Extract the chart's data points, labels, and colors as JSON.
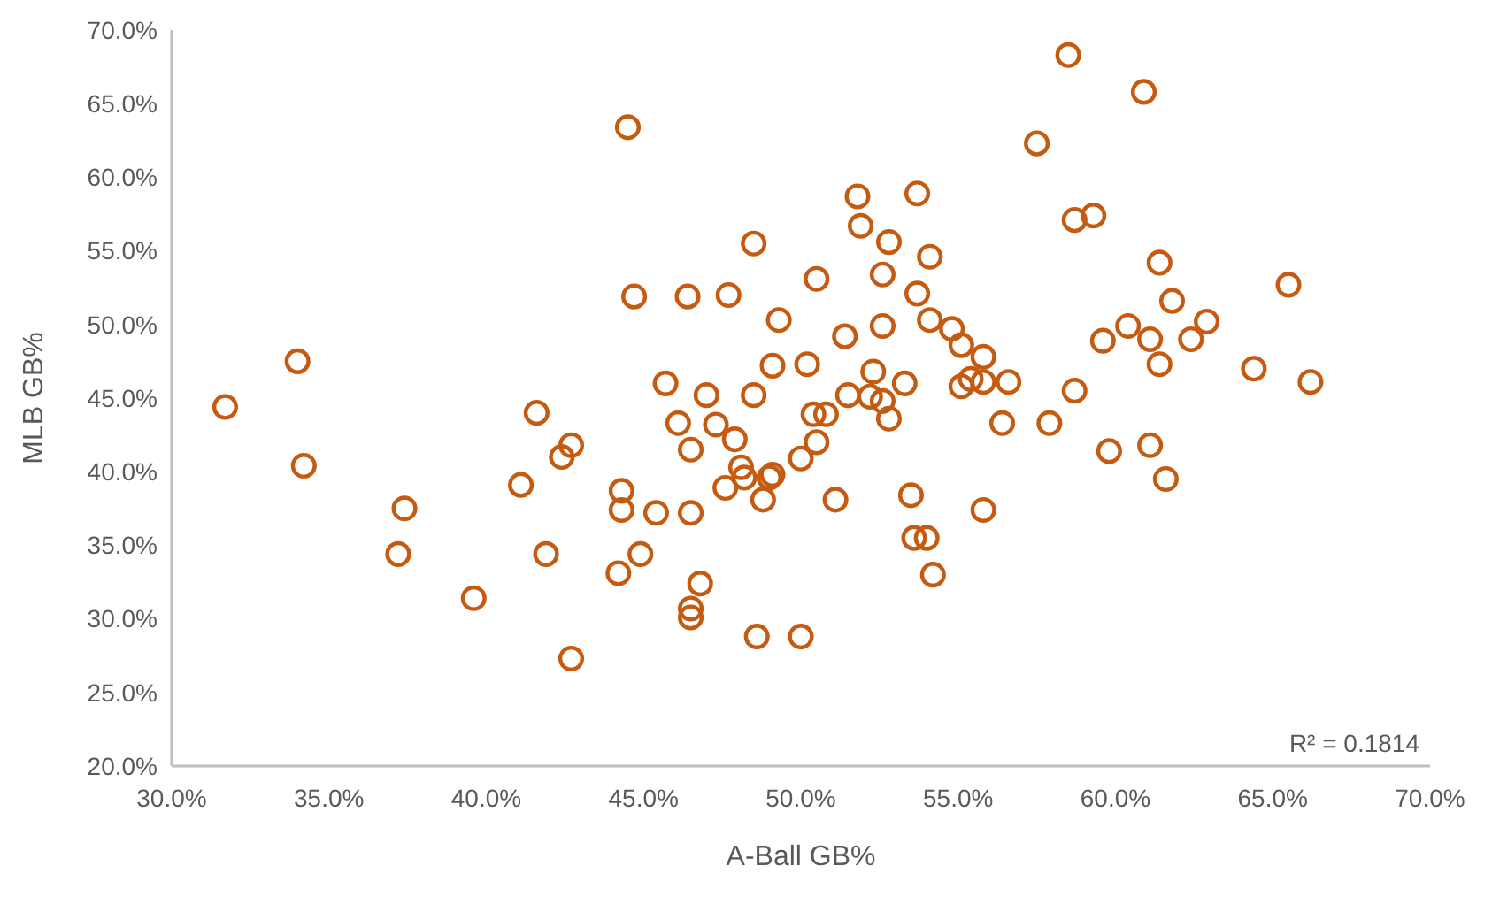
{
  "chart_data": {
    "type": "scatter",
    "xlabel": "A-Ball GB%",
    "ylabel": "MLB GB%",
    "marker": "circle",
    "annotations": [
      "R² = 0.1814"
    ],
    "xlim": [
      30,
      70
    ],
    "ylim": [
      20,
      70
    ],
    "xticks": [
      {
        "value": 30,
        "label": "30.0%"
      },
      {
        "value": 35,
        "label": "35.0%"
      },
      {
        "value": 40,
        "label": "40.0%"
      },
      {
        "value": 45,
        "label": "45.0%"
      },
      {
        "value": 50,
        "label": "50.0%"
      },
      {
        "value": 55,
        "label": "55.0%"
      },
      {
        "value": 60,
        "label": "60.0%"
      },
      {
        "value": 65,
        "label": "65.0%"
      },
      {
        "value": 70,
        "label": "70.0%"
      }
    ],
    "yticks": [
      {
        "value": 20,
        "label": "20.0%"
      },
      {
        "value": 25,
        "label": "25.0%"
      },
      {
        "value": 30,
        "label": "30.0%"
      },
      {
        "value": 35,
        "label": "35.0%"
      },
      {
        "value": 40,
        "label": "40.0%"
      },
      {
        "value": 45,
        "label": "45.0%"
      },
      {
        "value": 50,
        "label": "50.0%"
      },
      {
        "value": 55,
        "label": "55.0%"
      },
      {
        "value": 60,
        "label": "60.0%"
      },
      {
        "value": 65,
        "label": "65.0%"
      },
      {
        "value": 70,
        "label": "70.0%"
      }
    ],
    "series": [
      {
        "color": "#c55a11",
        "x": [
          31.7,
          34.0,
          34.2,
          37.4,
          37.2,
          39.6,
          41.1,
          41.6,
          41.9,
          42.4,
          42.7,
          42.7,
          44.3,
          44.3,
          44.2,
          44.5,
          44.7,
          44.9,
          45.4,
          45.7,
          46.1,
          46.4,
          46.5,
          46.5,
          46.5,
          46.5,
          46.8,
          47.0,
          47.3,
          47.6,
          47.7,
          47.9,
          48.1,
          48.2,
          48.5,
          48.5,
          48.6,
          48.8,
          49.0,
          49.1,
          49.1,
          49.3,
          50.0,
          50.0,
          50.2,
          50.4,
          50.5,
          50.5,
          50.8,
          51.1,
          51.4,
          51.5,
          51.8,
          51.9,
          52.2,
          52.3,
          52.6,
          52.6,
          52.6,
          52.8,
          52.8,
          53.3,
          53.5,
          53.6,
          53.7,
          53.7,
          54.0,
          54.1,
          54.1,
          54.2,
          54.8,
          55.1,
          55.1,
          55.4,
          55.8,
          55.8,
          55.8,
          56.4,
          56.6,
          57.5,
          57.9,
          58.7,
          59.6,
          59.8,
          58.5,
          58.7,
          59.3,
          60.4,
          60.9,
          61.1,
          61.1,
          61.4,
          61.4,
          61.6,
          61.8,
          62.4,
          62.9,
          64.4,
          65.5,
          66.2
        ],
        "values": [
          44.4,
          47.5,
          40.4,
          37.5,
          34.4,
          31.4,
          39.1,
          44.0,
          34.4,
          41.0,
          41.8,
          27.3,
          38.7,
          37.4,
          33.1,
          63.4,
          51.9,
          34.4,
          37.2,
          46.0,
          43.3,
          51.9,
          37.2,
          41.5,
          30.7,
          30.1,
          32.4,
          45.2,
          43.2,
          38.9,
          52.0,
          42.2,
          40.3,
          39.6,
          45.2,
          55.5,
          28.8,
          38.1,
          39.6,
          39.8,
          47.2,
          50.3,
          28.8,
          40.9,
          47.3,
          43.9,
          53.1,
          42.0,
          43.9,
          38.1,
          49.2,
          45.2,
          58.7,
          56.7,
          45.1,
          46.8,
          44.8,
          53.4,
          49.9,
          43.6,
          55.6,
          46.0,
          38.4,
          35.5,
          58.9,
          52.1,
          35.5,
          50.3,
          54.6,
          33.0,
          49.7,
          48.6,
          45.8,
          46.3,
          37.4,
          47.8,
          46.1,
          43.3,
          46.1,
          62.3,
          43.3,
          45.5,
          48.9,
          41.4,
          68.3,
          57.1,
          57.4,
          49.9,
          65.8,
          49.0,
          41.8,
          54.2,
          47.3,
          39.5,
          51.6,
          49.0,
          50.2,
          47.0,
          52.7,
          46.1
        ]
      }
    ]
  }
}
